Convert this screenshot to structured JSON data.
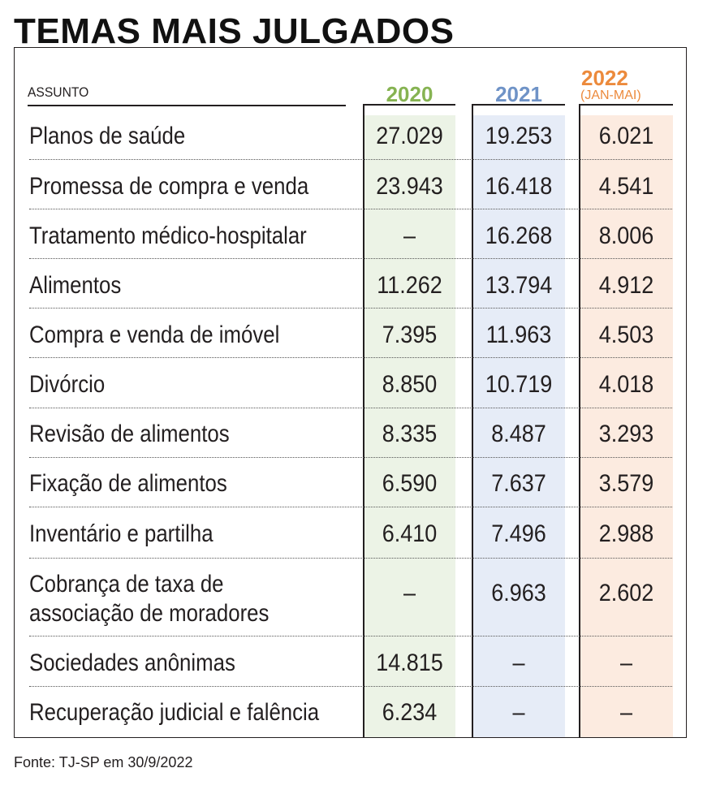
{
  "title": "TEMAS MAIS JULGADOS",
  "header": {
    "assunto": "ASSUNTO",
    "y2020": "2020",
    "y2021": "2021",
    "y2022": "2022",
    "y2022_note": "(JAN-MAI)"
  },
  "colors": {
    "y2020_text": "#86b352",
    "y2021_text": "#6f93c7",
    "y2022_text": "#ec8a3c",
    "y2020_band": "#ecf3e6",
    "y2021_band": "#e6ecf7",
    "y2022_band": "#fcebe0"
  },
  "rows": [
    {
      "assunto": "Planos de saúde",
      "v2020": "27.029",
      "v2021": "19.253",
      "v2022": "6.021"
    },
    {
      "assunto": "Promessa de compra e venda",
      "v2020": "23.943",
      "v2021": "16.418",
      "v2022": "4.541"
    },
    {
      "assunto": "Tratamento médico-hospitalar",
      "v2020": "–",
      "v2021": "16.268",
      "v2022": "8.006"
    },
    {
      "assunto": "Alimentos",
      "v2020": "11.262",
      "v2021": "13.794",
      "v2022": "4.912"
    },
    {
      "assunto": "Compra e venda de imóvel",
      "v2020": "7.395",
      "v2021": "11.963",
      "v2022": "4.503"
    },
    {
      "assunto": "Divórcio",
      "v2020": "8.850",
      "v2021": "10.719",
      "v2022": "4.018"
    },
    {
      "assunto": "Revisão de alimentos",
      "v2020": "8.335",
      "v2021": "8.487",
      "v2022": "3.293"
    },
    {
      "assunto": "Fixação de alimentos",
      "v2020": "6.590",
      "v2021": "7.637",
      "v2022": "3.579"
    },
    {
      "assunto": "Inventário e partilha",
      "v2020": "6.410",
      "v2021": "7.496",
      "v2022": "2.988"
    },
    {
      "assunto_line1": "Cobrança de taxa de",
      "assunto_line2": "associação de moradores",
      "v2020": "–",
      "v2021": "6.963",
      "v2022": "2.602"
    },
    {
      "assunto": "Sociedades anônimas",
      "v2020": "14.815",
      "v2021": "–",
      "v2022": "–"
    },
    {
      "assunto": "Recuperação judicial e falência",
      "v2020": "6.234",
      "v2021": "–",
      "v2022": "–"
    }
  ],
  "source": "Fonte: TJ-SP em 30/9/2022"
}
